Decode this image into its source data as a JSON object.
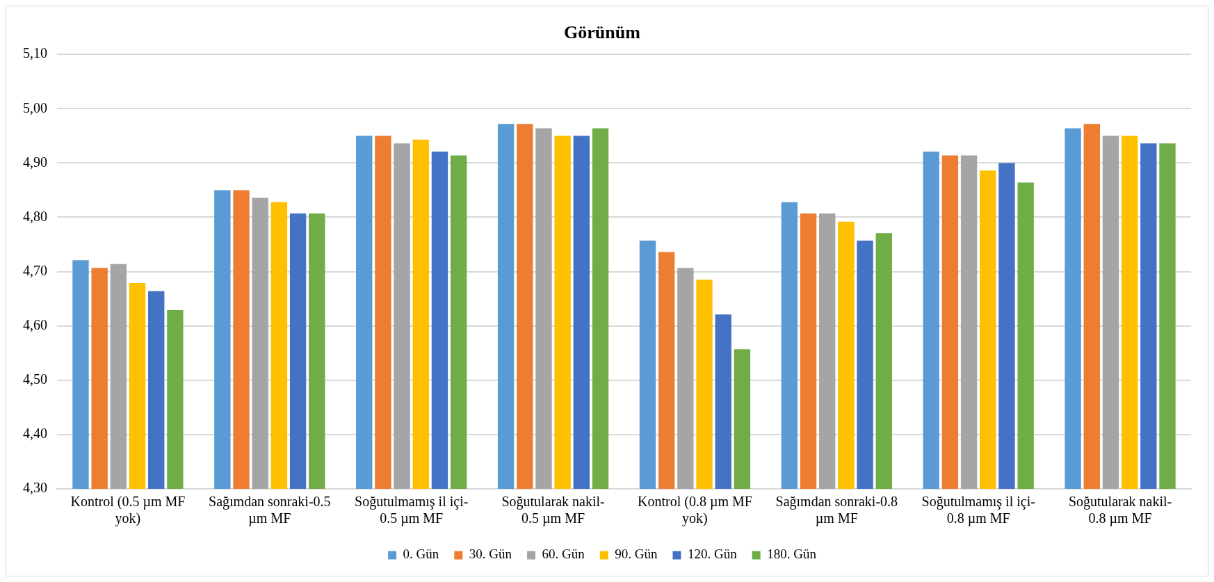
{
  "chart_data": {
    "type": "bar",
    "title": "Görünüm",
    "categories": [
      "Kontrol (0.5 µm MF yok)",
      "Sağımdan sonraki-0.5 µm MF",
      "Soğutulmamış il içi-0.5 µm MF",
      "Soğutularak nakil-0.5 µm MF",
      "Kontrol (0.8 µm MF yok)",
      "Sağımdan sonraki-0.8 µm MF",
      "Soğutulmamış il içi-0.8 µm MF",
      "Soğutularak nakil-0.8 µm MF"
    ],
    "series": [
      {
        "name": "0. Gün",
        "color": "#5b9bd5",
        "values": [
          4.721,
          4.85,
          4.95,
          4.972,
          4.757,
          4.828,
          4.921,
          4.964
        ]
      },
      {
        "name": "30. Gün",
        "color": "#ed7d31",
        "values": [
          4.707,
          4.85,
          4.95,
          4.972,
          4.736,
          4.807,
          4.914,
          4.972
        ]
      },
      {
        "name": "60. Gün",
        "color": "#a5a5a5",
        "values": [
          4.714,
          4.836,
          4.936,
          4.964,
          4.707,
          4.807,
          4.914,
          4.95
        ]
      },
      {
        "name": "90. Gün",
        "color": "#ffc000",
        "values": [
          4.679,
          4.828,
          4.943,
          4.95,
          4.685,
          4.792,
          4.886,
          4.95
        ]
      },
      {
        "name": "120. Gün",
        "color": "#4472c4",
        "values": [
          4.664,
          4.807,
          4.921,
          4.95,
          4.621,
          4.757,
          4.9,
          4.936
        ]
      },
      {
        "name": "180. Gün",
        "color": "#70ad47",
        "values": [
          4.629,
          4.807,
          4.914,
          4.964,
          4.557,
          4.771,
          4.864,
          4.936
        ]
      }
    ],
    "ylim": [
      4.3,
      5.1
    ],
    "yticks": [
      {
        "value": 4.3,
        "label": "4,30"
      },
      {
        "value": 4.4,
        "label": "4,40"
      },
      {
        "value": 4.5,
        "label": "4,50"
      },
      {
        "value": 4.6,
        "label": "4,60"
      },
      {
        "value": 4.7,
        "label": "4,70"
      },
      {
        "value": 4.8,
        "label": "4,80"
      },
      {
        "value": 4.9,
        "label": "4,90"
      },
      {
        "value": 5.0,
        "label": "5,00"
      },
      {
        "value": 5.1,
        "label": "5,10"
      }
    ],
    "grid": "y",
    "legend": "bottom"
  }
}
